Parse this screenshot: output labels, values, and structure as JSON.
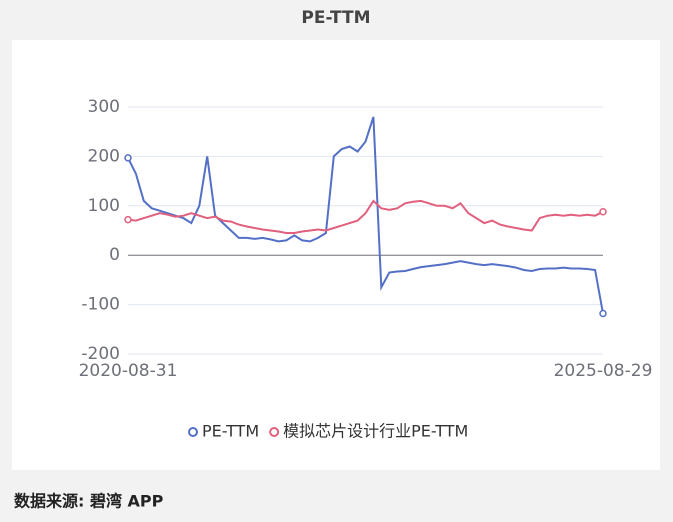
{
  "chart_data": {
    "type": "line",
    "title": "PE-TTM",
    "categories": [
      "2020-08-31",
      null,
      null,
      null,
      null,
      null,
      null,
      null,
      null,
      null,
      null,
      null,
      null,
      null,
      null,
      null,
      null,
      null,
      null,
      null,
      null,
      null,
      null,
      null,
      null,
      null,
      null,
      null,
      null,
      null,
      null,
      null,
      null,
      null,
      null,
      null,
      null,
      null,
      null,
      null,
      null,
      null,
      null,
      null,
      null,
      null,
      null,
      null,
      null,
      null,
      null,
      null,
      null,
      null,
      null,
      null,
      null,
      null,
      null,
      null,
      "2025-08-29"
    ],
    "series": [
      {
        "name": "PE-TTM",
        "color": "#5470c6",
        "values": [
          197,
          165,
          110,
          95,
          90,
          85,
          80,
          75,
          65,
          100,
          200,
          80,
          65,
          50,
          35,
          35,
          33,
          35,
          32,
          28,
          30,
          40,
          30,
          28,
          35,
          45,
          200,
          215,
          220,
          210,
          230,
          280,
          -65,
          -35,
          -33,
          -32,
          -28,
          -24,
          -22,
          -20,
          -18,
          -15,
          -12,
          -15,
          -18,
          -20,
          -18,
          -20,
          -22,
          -25,
          -30,
          -32,
          -28,
          -27,
          -27,
          -25,
          -27,
          -27,
          -28,
          -30,
          -118
        ]
      },
      {
        "name": "模拟芯片设计行业PE-TTM",
        "color": "#e0607e",
        "values": [
          72,
          70,
          75,
          80,
          85,
          82,
          78,
          80,
          85,
          80,
          75,
          78,
          70,
          68,
          62,
          58,
          55,
          52,
          50,
          48,
          45,
          45,
          48,
          50,
          52,
          50,
          55,
          60,
          65,
          70,
          85,
          110,
          95,
          92,
          95,
          105,
          108,
          110,
          105,
          100,
          100,
          95,
          105,
          85,
          75,
          65,
          70,
          62,
          58,
          55,
          52,
          50,
          75,
          80,
          82,
          80,
          82,
          80,
          82,
          80,
          88
        ]
      }
    ],
    "ylim": [
      -200,
      300
    ],
    "yticks": [
      -200,
      -100,
      0,
      100,
      200,
      300
    ],
    "grid": true,
    "legend": "bottom",
    "source": "数据来源: 碧湾 APP"
  }
}
